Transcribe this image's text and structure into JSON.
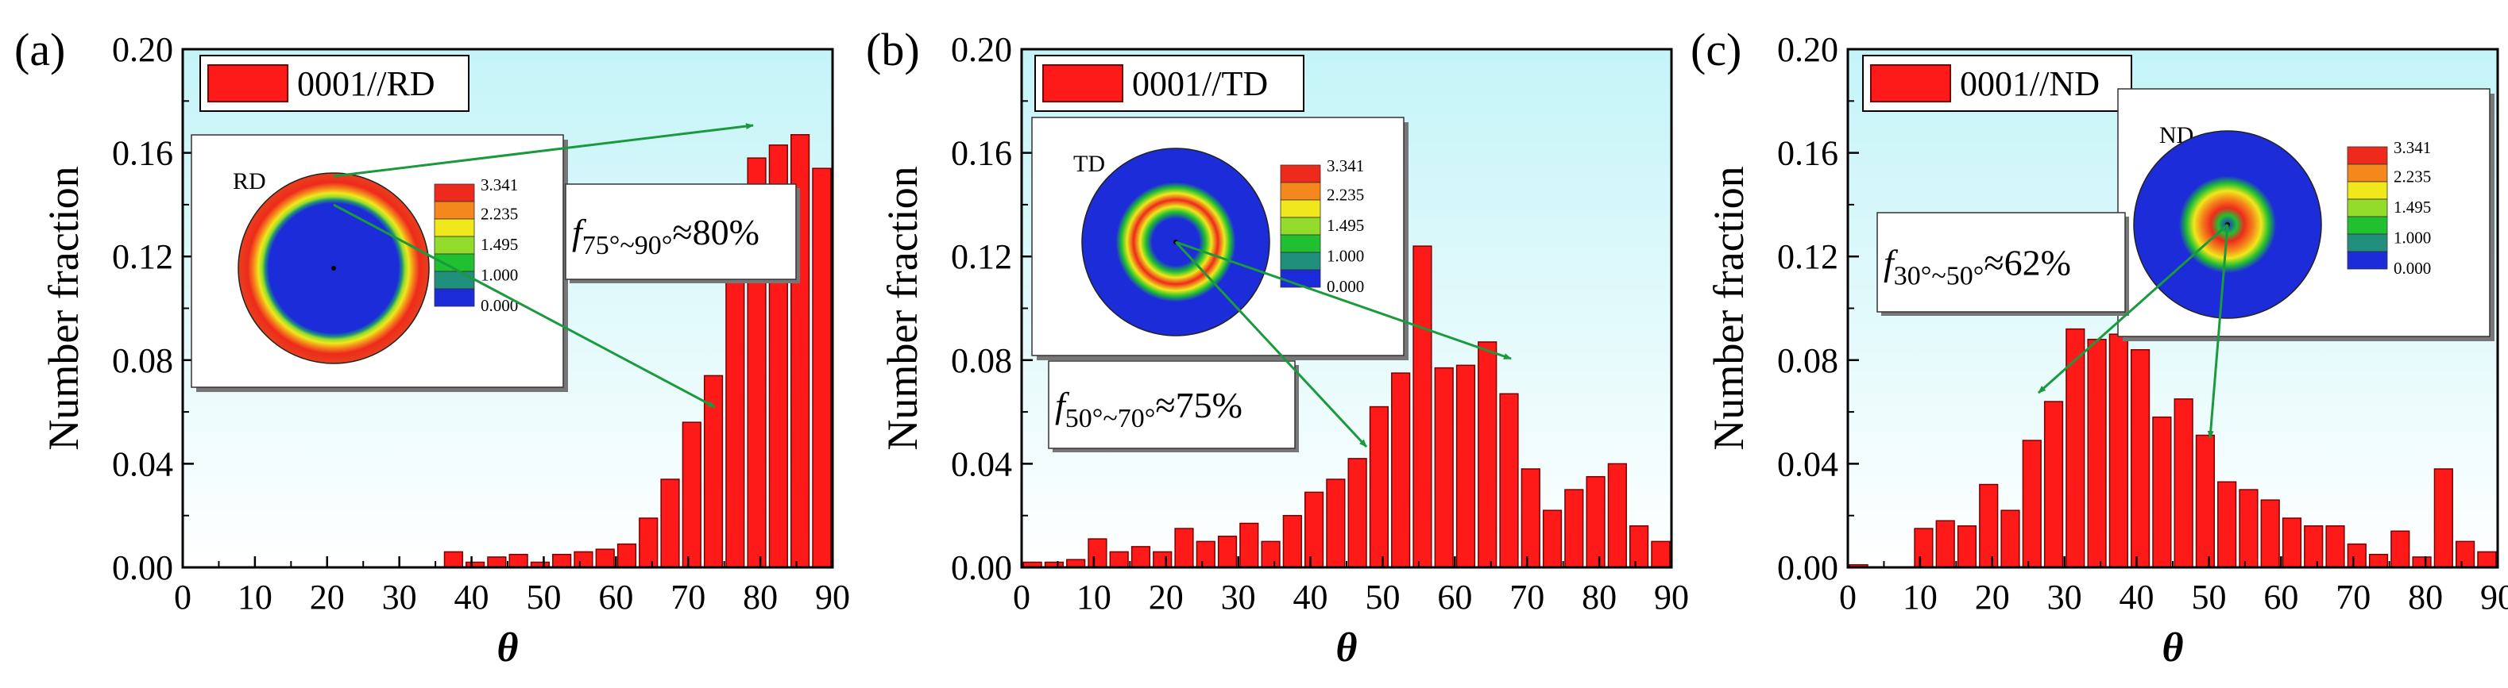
{
  "chart_data": [
    {
      "type": "bar",
      "panel": "(a)",
      "legend": "0001//RD",
      "legend_position": "top-left",
      "pole_label": "RD",
      "annotation": {
        "base": "f",
        "subscript": "75°~90°",
        "suffix": "≈80%"
      },
      "ylabel": "Number fraction",
      "xlabel": "θ",
      "xlim": [
        0,
        90
      ],
      "ylim": [
        0,
        0.2
      ],
      "xticks": [
        "0",
        "10",
        "20",
        "30",
        "40",
        "50",
        "60",
        "70",
        "80",
        "90"
      ],
      "yticks": [
        "0.00",
        "0.04",
        "0.08",
        "0.12",
        "0.16",
        "0.20"
      ],
      "bin_width": 3,
      "x": [
        1.5,
        4.5,
        7.5,
        10.5,
        13.5,
        16.5,
        19.5,
        22.5,
        25.5,
        28.5,
        31.5,
        34.5,
        37.5,
        40.5,
        43.5,
        46.5,
        49.5,
        52.5,
        55.5,
        58.5,
        61.5,
        64.5,
        67.5,
        70.5,
        73.5,
        76.5,
        79.5,
        82.5,
        85.5,
        88.5
      ],
      "values": [
        0,
        0,
        0,
        0,
        0,
        0,
        0,
        0,
        0,
        0,
        0,
        0,
        0.006,
        0.002,
        0.004,
        0.005,
        0.002,
        0.005,
        0.006,
        0.007,
        0.009,
        0.019,
        0.034,
        0.056,
        0.074,
        0.119,
        0.158,
        0.163,
        0.167,
        0.154
      ],
      "colorbar": {
        "labels": [
          "3.341",
          "2.235",
          "1.495",
          "1.000",
          "0.000"
        ]
      }
    },
    {
      "type": "bar",
      "panel": "(b)",
      "legend": "0001//TD",
      "legend_position": "top-left",
      "pole_label": "TD",
      "annotation": {
        "base": "f",
        "subscript": "50°~70°",
        "suffix": "≈75%"
      },
      "ylabel": "Number fraction",
      "xlabel": "θ",
      "xlim": [
        0,
        90
      ],
      "ylim": [
        0,
        0.2
      ],
      "xticks": [
        "0",
        "10",
        "20",
        "30",
        "40",
        "50",
        "60",
        "70",
        "80",
        "90"
      ],
      "yticks": [
        "0.00",
        "0.04",
        "0.08",
        "0.12",
        "0.16",
        "0.20"
      ],
      "bin_width": 3,
      "x": [
        1.5,
        4.5,
        7.5,
        10.5,
        13.5,
        16.5,
        19.5,
        22.5,
        25.5,
        28.5,
        31.5,
        34.5,
        37.5,
        40.5,
        43.5,
        46.5,
        49.5,
        52.5,
        55.5,
        58.5,
        61.5,
        64.5,
        67.5,
        70.5,
        73.5,
        76.5,
        79.5,
        82.5,
        85.5,
        88.5
      ],
      "values": [
        0.002,
        0.002,
        0.003,
        0.011,
        0.006,
        0.008,
        0.006,
        0.015,
        0.01,
        0.012,
        0.017,
        0.01,
        0.02,
        0.029,
        0.034,
        0.042,
        0.062,
        0.075,
        0.124,
        0.077,
        0.078,
        0.087,
        0.067,
        0.038,
        0.022,
        0.03,
        0.035,
        0.04,
        0.016,
        0.01
      ],
      "colorbar": {
        "labels": [
          "3.341",
          "2.235",
          "1.495",
          "1.000",
          "0.000"
        ]
      }
    },
    {
      "type": "bar",
      "panel": "(c)",
      "legend": "0001//ND",
      "legend_position": "top-left",
      "pole_label": "ND",
      "annotation": {
        "base": "f",
        "subscript": "30°~50°",
        "suffix": "≈62%"
      },
      "ylabel": "Number fraction",
      "xlabel": "θ",
      "xlim": [
        0,
        90
      ],
      "ylim": [
        0,
        0.2
      ],
      "xticks": [
        "0",
        "10",
        "20",
        "30",
        "40",
        "50",
        "60",
        "70",
        "80",
        "90"
      ],
      "yticks": [
        "0.00",
        "0.04",
        "0.08",
        "0.12",
        "0.16",
        "0.20"
      ],
      "bin_width": 3,
      "x": [
        1.5,
        4.5,
        7.5,
        10.5,
        13.5,
        16.5,
        19.5,
        22.5,
        25.5,
        28.5,
        31.5,
        34.5,
        37.5,
        40.5,
        43.5,
        46.5,
        49.5,
        52.5,
        55.5,
        58.5,
        61.5,
        64.5,
        67.5,
        70.5,
        73.5,
        76.5,
        79.5,
        82.5,
        85.5,
        88.5
      ],
      "values": [
        0.001,
        0,
        0,
        0.015,
        0.018,
        0.016,
        0.032,
        0.022,
        0.049,
        0.064,
        0.092,
        0.088,
        0.09,
        0.084,
        0.058,
        0.065,
        0.051,
        0.033,
        0.03,
        0.026,
        0.019,
        0.016,
        0.016,
        0.009,
        0.005,
        0.014,
        0.004,
        0.038,
        0.01,
        0.006
      ],
      "colorbar": {
        "labels": [
          "3.341",
          "2.235",
          "1.495",
          "1.000",
          "0.000"
        ]
      }
    }
  ],
  "colors": {
    "bar_fill": "#ff1a1a",
    "bar_stroke": "#7a0000",
    "background_top": "#c4f4f8",
    "background_bottom": "#ffffff",
    "arrow": "#1a9a3c",
    "colorbar": [
      "#ee2a1c",
      "#f4881c",
      "#f0e81c",
      "#94dc2c",
      "#20c030",
      "#20907c",
      "#1c2cd8"
    ]
  }
}
